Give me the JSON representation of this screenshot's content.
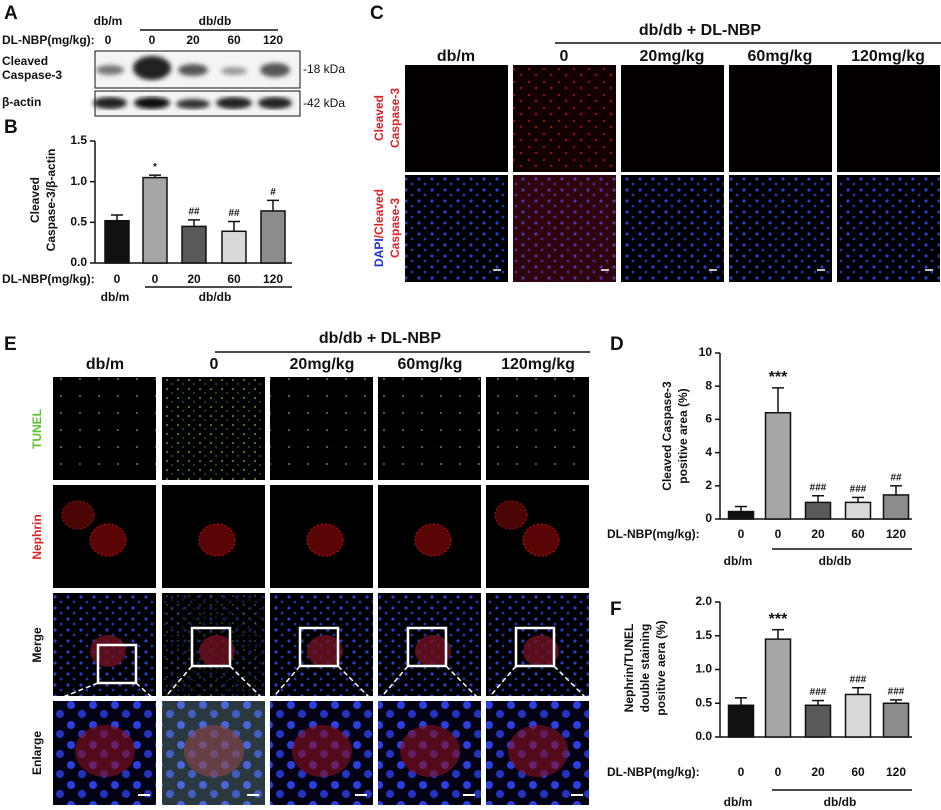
{
  "panel_a": {
    "label": "A",
    "groups": [
      "db/m",
      "db/db"
    ],
    "dose_label": "DL-NBP(mg/kg):",
    "doses": [
      "0",
      "0",
      "20",
      "60",
      "120"
    ],
    "blots": [
      {
        "label": [
          "Cleaved",
          "Caspase-3"
        ],
        "size": "-18 kDa"
      },
      {
        "label": [
          "β-actin"
        ],
        "size": "-42 kDa"
      }
    ]
  },
  "panel_c": {
    "label": "C",
    "header": "db/db + DL-NBP",
    "columns": [
      "db/m",
      "0",
      "20mg/kg",
      "60mg/kg",
      "120mg/kg"
    ],
    "row_labels": [
      {
        "parts": [
          "Cleaved"
        ],
        "line2": "Caspase-3"
      },
      {
        "parts": [
          "DAPI",
          "/Cleaved"
        ],
        "line2": "Caspase-3"
      }
    ]
  },
  "panel_e": {
    "label": "E",
    "header": "db/db + DL-NBP",
    "columns": [
      "db/m",
      "0",
      "20mg/kg",
      "60mg/kg",
      "120mg/kg"
    ],
    "row_labels": [
      "TUNEL",
      "Nephrin",
      "Merge",
      "Enlarge"
    ]
  },
  "chart_data": [
    {
      "type": "bar",
      "panel": "B",
      "ylabel": [
        "Cleaved",
        "Caspase-3/β-actin"
      ],
      "dose_label": "DL-NBP(mg/kg):",
      "categories": [
        "0",
        "0",
        "20",
        "60",
        "120"
      ],
      "values": [
        0.52,
        1.05,
        0.45,
        0.39,
        0.64
      ],
      "errors": [
        0.07,
        0.03,
        0.08,
        0.12,
        0.13
      ],
      "annotations": [
        null,
        "*",
        "##",
        "##",
        "#"
      ],
      "colors": [
        "#111111",
        "#a6a6a6",
        "#595959",
        "#d9d9d9",
        "#8c8c8c"
      ],
      "groups": [
        "db/m",
        "db/db"
      ],
      "ylim": [
        0,
        1.5
      ],
      "yticks": [
        {
          "value": 0,
          "label": "0.0"
        },
        0.5,
        {
          "value": 1,
          "label": "1.0"
        },
        1.5
      ]
    },
    {
      "type": "bar",
      "panel": "D",
      "ylabel": [
        "Cleaved Caspase-3",
        "positive area (%)"
      ],
      "dose_label": "DL-NBP(mg/kg):",
      "categories": [
        "0",
        "0",
        "20",
        "60",
        "120"
      ],
      "values": [
        0.45,
        6.4,
        1.0,
        1.0,
        1.45
      ],
      "errors": [
        0.3,
        1.5,
        0.4,
        0.3,
        0.55
      ],
      "annotations": [
        null,
        "***",
        "###",
        "###",
        "##"
      ],
      "colors": [
        "#111111",
        "#a6a6a6",
        "#595959",
        "#d9d9d9",
        "#8c8c8c"
      ],
      "groups": [
        "db/m",
        "db/db"
      ],
      "ylim": [
        0,
        10
      ],
      "yticks": [
        0,
        2,
        4,
        6,
        8,
        10
      ]
    },
    {
      "type": "bar",
      "panel": "F",
      "ylabel": [
        "Nephrin/TUNEL",
        "double staining",
        "positive aera (%)"
      ],
      "dose_label": "DL-NBP(mg/kg):",
      "categories": [
        "0",
        "0",
        "20",
        "60",
        "120"
      ],
      "values": [
        0.47,
        1.45,
        0.47,
        0.63,
        0.5
      ],
      "errors": [
        0.11,
        0.14,
        0.07,
        0.1,
        0.05
      ],
      "annotations": [
        null,
        "***",
        "###",
        "###",
        "###"
      ],
      "colors": [
        "#111111",
        "#a6a6a6",
        "#595959",
        "#d9d9d9",
        "#8c8c8c"
      ],
      "groups": [
        "db/m",
        "db/db"
      ],
      "ylim": [
        0,
        2
      ],
      "yticks": [
        {
          "value": 0,
          "label": "0.0"
        },
        0.5,
        {
          "value": 1,
          "label": "1.0"
        },
        1.5,
        {
          "value": 2,
          "label": "2.0"
        }
      ]
    }
  ]
}
